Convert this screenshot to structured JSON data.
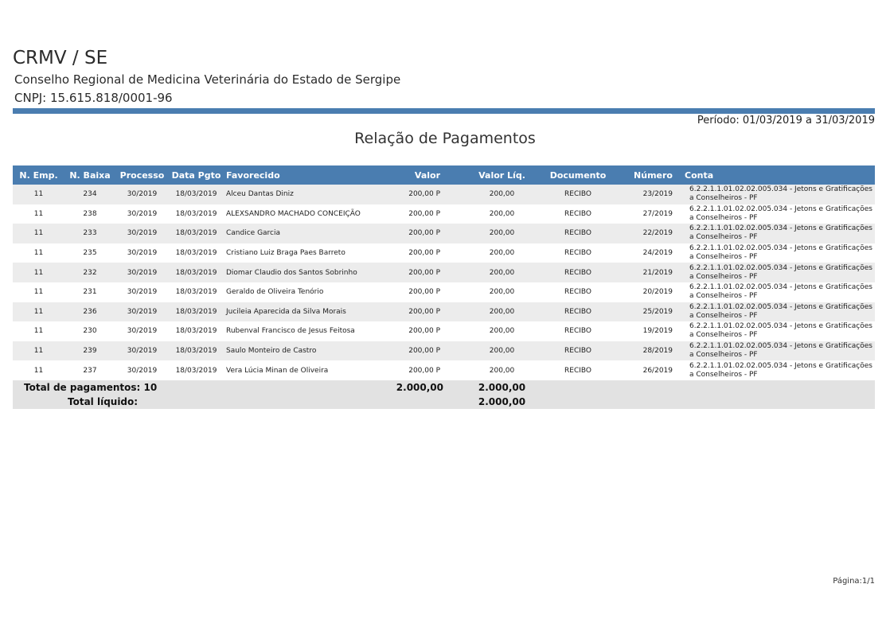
{
  "header": {
    "org_short": "CRMV / SE",
    "org_full": "Conselho Regional de Medicina Veterinária do Estado de Sergipe",
    "cnpj": "CNPJ: 15.615.818/0001-96",
    "periodo": "Período: 01/03/2019 a 31/03/2019",
    "report_title": "Relação de Pagamentos"
  },
  "table": {
    "headers": [
      "N. Emp.",
      "N. Baixa",
      "Processo",
      "Data Pgto",
      "Favorecido",
      "Valor",
      "Valor Líq.",
      "Documento",
      "Número",
      "Conta"
    ],
    "rows": [
      [
        "11",
        "234",
        "30/2019",
        "18/03/2019",
        "Alceu Dantas Diniz",
        "200,00 P",
        "200,00",
        "RECIBO",
        "23/2019",
        "6.2.2.1.1.01.02.02.005.034 - Jetons e Gratificações a Conselheiros - PF"
      ],
      [
        "11",
        "238",
        "30/2019",
        "18/03/2019",
        "ALEXSANDRO MACHADO CONCEIÇÃO",
        "200,00 P",
        "200,00",
        "RECIBO",
        "27/2019",
        "6.2.2.1.1.01.02.02.005.034 - Jetons e Gratificações a Conselheiros - PF"
      ],
      [
        "11",
        "233",
        "30/2019",
        "18/03/2019",
        "Candice Garcia",
        "200,00 P",
        "200,00",
        "RECIBO",
        "22/2019",
        "6.2.2.1.1.01.02.02.005.034 - Jetons e Gratificações a Conselheiros - PF"
      ],
      [
        "11",
        "235",
        "30/2019",
        "18/03/2019",
        "Cristiano Luiz Braga Paes Barreto",
        "200,00 P",
        "200,00",
        "RECIBO",
        "24/2019",
        "6.2.2.1.1.01.02.02.005.034 - Jetons e Gratificações a Conselheiros - PF"
      ],
      [
        "11",
        "232",
        "30/2019",
        "18/03/2019",
        "Diomar Claudio dos Santos Sobrinho",
        "200,00 P",
        "200,00",
        "RECIBO",
        "21/2019",
        "6.2.2.1.1.01.02.02.005.034 - Jetons e Gratificações a Conselheiros - PF"
      ],
      [
        "11",
        "231",
        "30/2019",
        "18/03/2019",
        "Geraldo de Oliveira Tenório",
        "200,00 P",
        "200,00",
        "RECIBO",
        "20/2019",
        "6.2.2.1.1.01.02.02.005.034 - Jetons e Gratificações a Conselheiros - PF"
      ],
      [
        "11",
        "236",
        "30/2019",
        "18/03/2019",
        "Jucileia Aparecida da Silva Morais",
        "200,00 P",
        "200,00",
        "RECIBO",
        "25/2019",
        "6.2.2.1.1.01.02.02.005.034 - Jetons e Gratificações a Conselheiros - PF"
      ],
      [
        "11",
        "230",
        "30/2019",
        "18/03/2019",
        "Rubenval Francisco de Jesus Feitosa",
        "200,00 P",
        "200,00",
        "RECIBO",
        "19/2019",
        "6.2.2.1.1.01.02.02.005.034 - Jetons e Gratificações a Conselheiros - PF"
      ],
      [
        "11",
        "239",
        "30/2019",
        "18/03/2019",
        "Saulo Monteiro de Castro",
        "200,00 P",
        "200,00",
        "RECIBO",
        "28/2019",
        "6.2.2.1.1.01.02.02.005.034 - Jetons e Gratificações a Conselheiros - PF"
      ],
      [
        "11",
        "237",
        "30/2019",
        "18/03/2019",
        "Vera Lúcia Minan de Oliveira",
        "200,00 P",
        "200,00",
        "RECIBO",
        "26/2019",
        "6.2.2.1.1.01.02.02.005.034 - Jetons e Gratificações a Conselheiros - PF"
      ]
    ]
  },
  "totals": {
    "pagamentos_label": "Total de pagamentos:",
    "pagamentos_count": "10",
    "total_valor": "2.000,00",
    "total_valor_liq": "2.000,00",
    "liquido_label": "Total líquido:",
    "liquido_value": "2.000,00"
  },
  "footer": {
    "pagina": "Página:1/1"
  },
  "colors": {
    "header_bar": "#4a7db0",
    "row_stripe": "#ececec",
    "totals_bg": "#e2e2e2"
  }
}
